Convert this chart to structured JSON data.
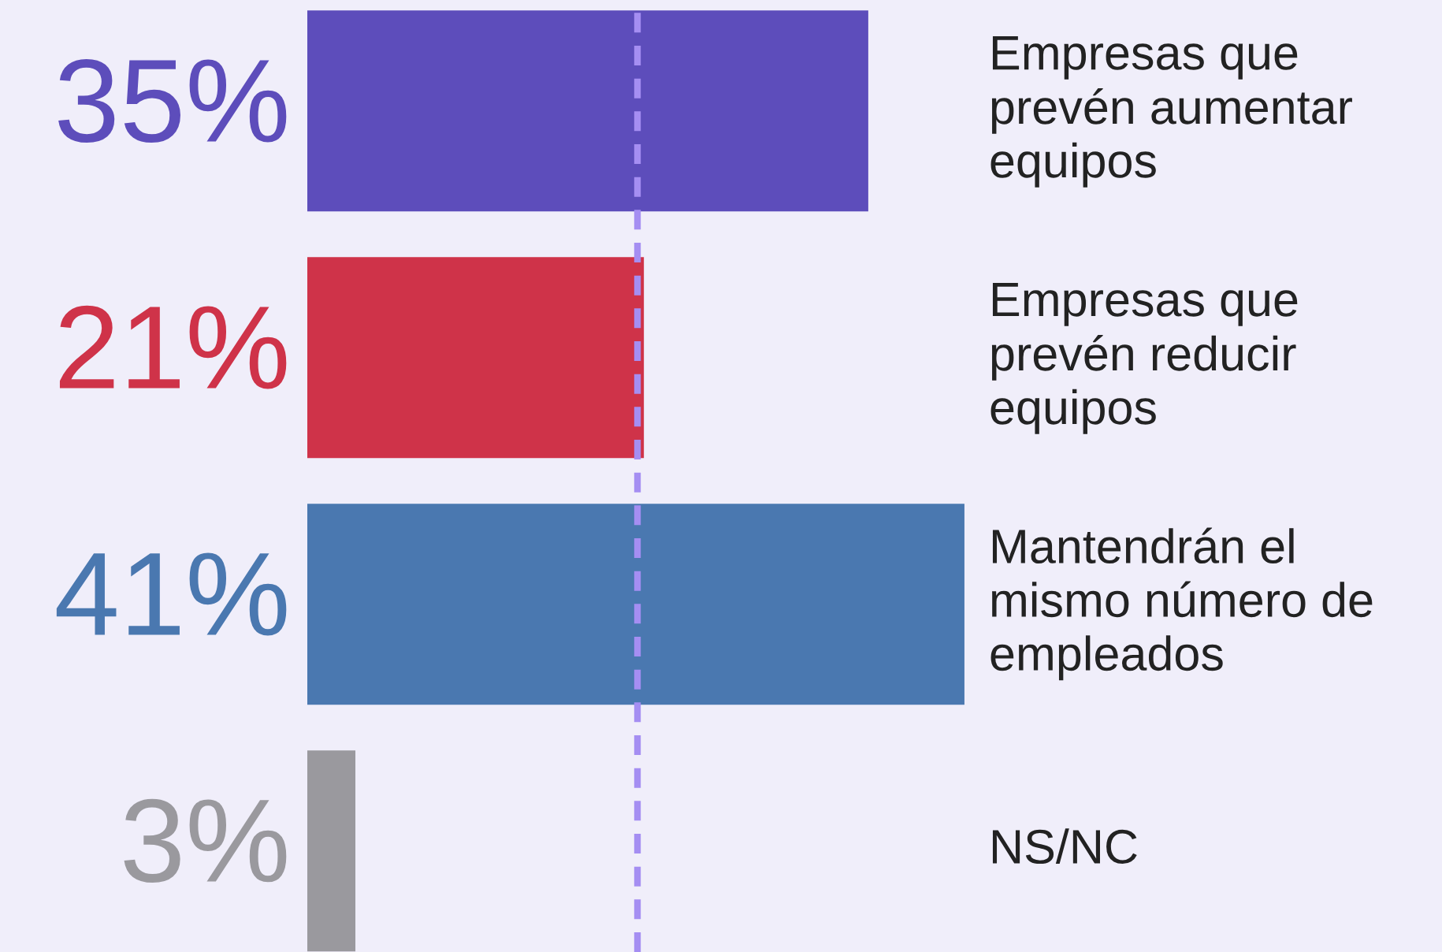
{
  "chart_data": {
    "type": "bar",
    "orientation": "horizontal",
    "categories": [
      "Empresas que\nprevén aumentar\nequipos",
      "Empresas que\nprevén reducir\nequipos",
      "Mantendrán el\nmismo número de\nempleados",
      "NS/NC"
    ],
    "values": [
      35,
      21,
      41,
      3
    ],
    "value_labels": [
      "35%",
      "21%",
      "41%",
      "3%"
    ],
    "colors": [
      "#5d4dbb",
      "#cf3349",
      "#4a78b0",
      "#9a999e"
    ],
    "ref_lines": [
      {
        "axis": "x",
        "value": 20.6,
        "color": "#a58ef2",
        "line_style": "dashed"
      }
    ]
  }
}
